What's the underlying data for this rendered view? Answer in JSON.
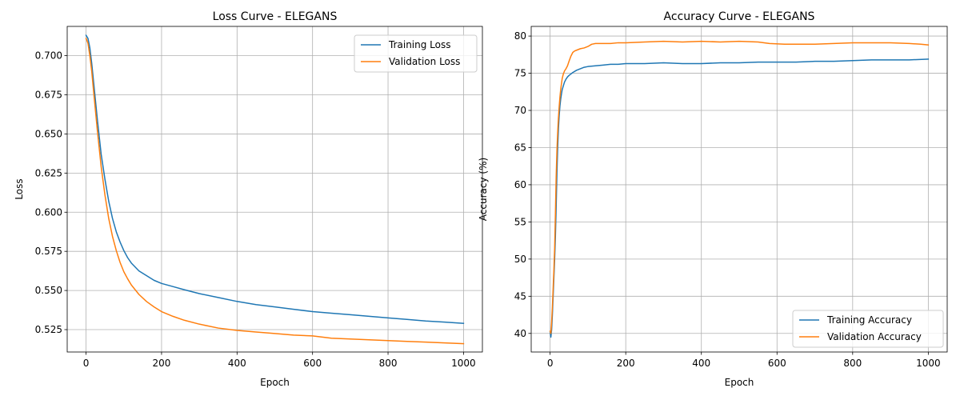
{
  "chart_data": [
    {
      "type": "line",
      "title": "Loss Curve - ELEGANS",
      "xlabel": "Epoch",
      "ylabel": "Loss",
      "xlim": [
        -50,
        1050
      ],
      "ylim": [
        0.5107,
        0.7187
      ],
      "xticks": [
        0,
        200,
        400,
        600,
        800,
        1000
      ],
      "yticks": [
        0.525,
        0.55,
        0.575,
        0.6,
        0.625,
        0.65,
        0.675,
        0.7
      ],
      "ytick_labels": [
        "0.525",
        "0.550",
        "0.575",
        "0.600",
        "0.625",
        "0.650",
        "0.675",
        "0.700"
      ],
      "grid": true,
      "legend_position": "top-right",
      "series": [
        {
          "name": "Training Loss",
          "color": "#1f77b4",
          "x": [
            0,
            5,
            10,
            15,
            20,
            30,
            40,
            50,
            60,
            70,
            80,
            90,
            100,
            110,
            120,
            140,
            160,
            180,
            200,
            230,
            260,
            300,
            350,
            400,
            450,
            500,
            550,
            600,
            650,
            700,
            750,
            800,
            850,
            900,
            950,
            1000
          ],
          "values": [
            0.713,
            0.711,
            0.705,
            0.695,
            0.683,
            0.659,
            0.637,
            0.621,
            0.607,
            0.596,
            0.5875,
            0.581,
            0.5755,
            0.571,
            0.5675,
            0.5625,
            0.5595,
            0.5565,
            0.5545,
            0.5525,
            0.5505,
            0.548,
            0.5455,
            0.543,
            0.541,
            0.5395,
            0.538,
            0.5365,
            0.5355,
            0.5345,
            0.5335,
            0.5325,
            0.5315,
            0.5305,
            0.5298,
            0.529
          ]
        },
        {
          "name": "Validation Loss",
          "color": "#ff7f0e",
          "x": [
            0,
            5,
            10,
            15,
            20,
            30,
            40,
            50,
            60,
            70,
            80,
            90,
            100,
            110,
            120,
            140,
            160,
            180,
            200,
            230,
            260,
            300,
            350,
            400,
            450,
            500,
            550,
            600,
            650,
            700,
            750,
            800,
            850,
            900,
            950,
            1000
          ],
          "values": [
            0.711,
            0.708,
            0.7,
            0.69,
            0.677,
            0.652,
            0.629,
            0.611,
            0.596,
            0.5845,
            0.5755,
            0.568,
            0.562,
            0.5575,
            0.5535,
            0.5475,
            0.543,
            0.5395,
            0.5365,
            0.5335,
            0.531,
            0.5285,
            0.526,
            0.5245,
            0.5235,
            0.5225,
            0.5215,
            0.521,
            0.5195,
            0.519,
            0.5185,
            0.518,
            0.5175,
            0.517,
            0.5165,
            0.516
          ]
        }
      ]
    },
    {
      "type": "line",
      "title": "Accuracy Curve - ELEGANS",
      "xlabel": "Epoch",
      "ylabel": "Accuracy (%)",
      "xlim": [
        -50,
        1050
      ],
      "ylim": [
        37.5,
        81.3
      ],
      "xticks": [
        0,
        200,
        400,
        600,
        800,
        1000
      ],
      "yticks": [
        40,
        45,
        50,
        55,
        60,
        65,
        70,
        75,
        80
      ],
      "ytick_labels": [
        "40",
        "45",
        "50",
        "55",
        "60",
        "65",
        "70",
        "75",
        "80"
      ],
      "grid": true,
      "legend_position": "lower-right",
      "series": [
        {
          "name": "Training Accuracy",
          "color": "#1f77b4",
          "x": [
            0,
            2,
            4,
            6,
            8,
            10,
            12,
            14,
            16,
            18,
            20,
            22,
            24,
            26,
            28,
            30,
            32,
            35,
            38,
            42,
            46,
            50,
            55,
            60,
            70,
            80,
            90,
            100,
            120,
            140,
            160,
            180,
            200,
            250,
            300,
            350,
            400,
            450,
            500,
            550,
            600,
            650,
            700,
            750,
            800,
            850,
            900,
            950,
            1000
          ],
          "values": [
            40.2,
            39.5,
            40.5,
            42.5,
            45.0,
            47.5,
            50.0,
            53.0,
            57.0,
            61.5,
            65.0,
            67.5,
            69.3,
            70.6,
            71.5,
            72.2,
            72.8,
            73.3,
            73.8,
            74.2,
            74.5,
            74.7,
            74.9,
            75.1,
            75.4,
            75.6,
            75.8,
            75.9,
            76.0,
            76.1,
            76.2,
            76.2,
            76.3,
            76.3,
            76.4,
            76.3,
            76.3,
            76.4,
            76.4,
            76.5,
            76.5,
            76.5,
            76.6,
            76.6,
            76.7,
            76.8,
            76.8,
            76.8,
            76.9
          ]
        },
        {
          "name": "Validation Accuracy",
          "color": "#ff7f0e",
          "x": [
            0,
            2,
            4,
            6,
            8,
            10,
            12,
            14,
            16,
            18,
            20,
            22,
            24,
            26,
            28,
            30,
            32,
            35,
            38,
            42,
            46,
            50,
            55,
            60,
            65,
            70,
            80,
            90,
            100,
            110,
            120,
            140,
            160,
            180,
            200,
            250,
            300,
            350,
            400,
            450,
            500,
            550,
            580,
            620,
            700,
            750,
            800,
            850,
            900,
            950,
            980,
            1000
          ],
          "values": [
            40.3,
            40.0,
            41.5,
            43.5,
            46.0,
            48.5,
            51.5,
            56.0,
            61.0,
            64.5,
            67.0,
            69.0,
            70.5,
            71.8,
            72.8,
            73.6,
            74.3,
            74.9,
            75.3,
            75.6,
            76.0,
            76.6,
            77.3,
            77.8,
            78.0,
            78.1,
            78.3,
            78.4,
            78.6,
            78.9,
            79.0,
            79.0,
            79.0,
            79.1,
            79.1,
            79.2,
            79.3,
            79.2,
            79.3,
            79.2,
            79.3,
            79.2,
            79.0,
            78.9,
            78.9,
            79.0,
            79.1,
            79.1,
            79.1,
            79.0,
            78.9,
            78.8
          ]
        }
      ]
    }
  ]
}
